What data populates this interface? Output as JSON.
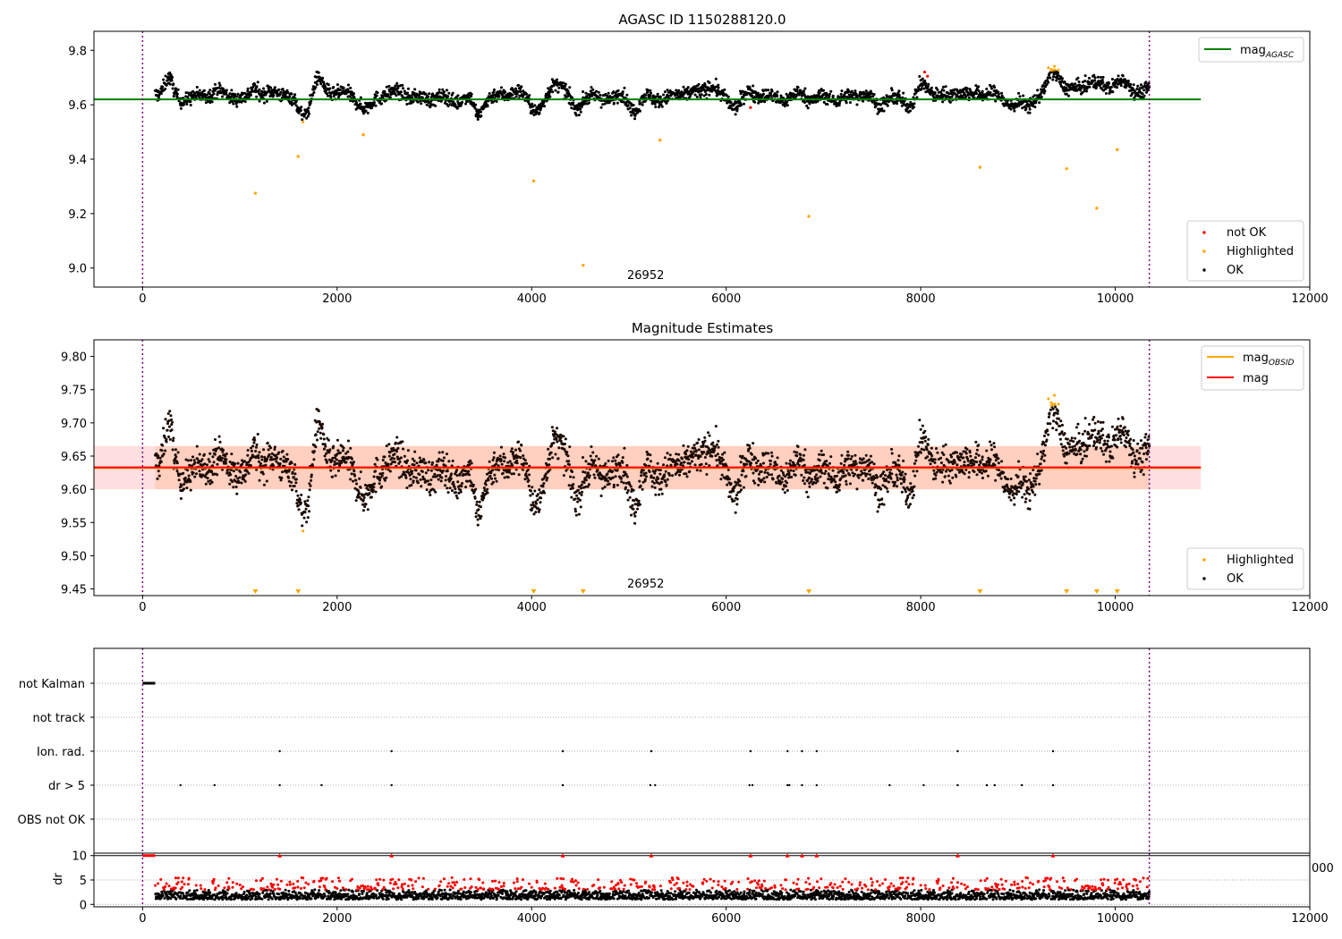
{
  "figure": {
    "background": "#ffffff",
    "obs_start_line": 0,
    "obs_end_line": 10350,
    "boundary_color": "#800080",
    "annotation": "26952"
  },
  "chart_data": [
    {
      "type": "scatter",
      "id": "agasc",
      "title": "AGASC ID 1150288120.0",
      "xlim": [
        -500,
        12000
      ],
      "ylim": [
        8.93,
        9.87
      ],
      "xticks": [
        "0",
        "2000",
        "4000",
        "6000",
        "8000",
        "10000",
        "12000"
      ],
      "yticks": [
        "9.0",
        "9.2",
        "9.4",
        "9.6",
        "9.8"
      ],
      "hline": {
        "name": "mag_AGASC",
        "value": 9.62,
        "x_range": [
          -500,
          10880
        ],
        "color": "#008000"
      },
      "series": [
        {
          "name": "not OK",
          "color": "#ff0000"
        },
        {
          "name": "Highlighted",
          "color": "#ffa500"
        },
        {
          "name": "OK",
          "color": "#000000"
        }
      ],
      "band": {
        "x_range": [
          130,
          10350
        ],
        "center": 9.635,
        "spread": 0.025
      },
      "outliers": [
        {
          "x": 1160,
          "y": 9.275
        },
        {
          "x": 1600,
          "y": 9.41
        },
        {
          "x": 2270,
          "y": 9.49
        },
        {
          "x": 4020,
          "y": 9.32
        },
        {
          "x": 4530,
          "y": 9.01
        },
        {
          "x": 5320,
          "y": 9.47
        },
        {
          "x": 6850,
          "y": 9.19
        },
        {
          "x": 8610,
          "y": 9.37
        },
        {
          "x": 9500,
          "y": 9.365
        },
        {
          "x": 9810,
          "y": 9.22
        },
        {
          "x": 10020,
          "y": 9.435
        }
      ],
      "annotation": {
        "text": "26952",
        "x": 5000,
        "y": 8.96
      }
    },
    {
      "type": "scatter",
      "id": "magnitude",
      "title": "Magnitude Estimates",
      "xlim": [
        -500,
        12000
      ],
      "ylim": [
        9.44,
        9.825
      ],
      "xticks": [
        "0",
        "2000",
        "4000",
        "6000",
        "8000",
        "10000",
        "12000"
      ],
      "yticks": [
        "9.45",
        "9.50",
        "9.55",
        "9.60",
        "9.65",
        "9.70",
        "9.75",
        "9.80"
      ],
      "hlines": [
        {
          "name": "mag_OBSID",
          "value": 9.632,
          "color": "#ffa500"
        },
        {
          "name": "mag",
          "value": 9.633,
          "color": "#ff0000"
        }
      ],
      "shaded_band": {
        "ymin": 9.6,
        "ymax": 9.665,
        "x_range": [
          -500,
          10880
        ],
        "color": "#ffc0c0"
      },
      "series": [
        {
          "name": "Highlighted",
          "color": "#ffa500"
        },
        {
          "name": "OK",
          "color": "#000000"
        }
      ],
      "offscale_markers_x": [
        1160,
        1600,
        4020,
        4530,
        6850,
        8610,
        9500,
        9810,
        10020
      ],
      "annotation": {
        "text": "26952",
        "x": 5000,
        "y": 9.447
      }
    },
    {
      "type": "scatter",
      "id": "flags",
      "xlim": [
        -500,
        12000
      ],
      "categories": [
        "not Kalman",
        "not track",
        "Ion. rad.",
        "dr > 5",
        "OBS not OK"
      ],
      "events": {
        "not Kalman": {
          "range": [
            0,
            130
          ]
        },
        "not track": {
          "x": []
        },
        "Ion. rad.": {
          "x": [
            1410,
            2560,
            4320,
            5230,
            6250,
            6630,
            6780,
            6930,
            8380,
            9360
          ]
        },
        "dr > 5": {
          "x": [
            390,
            740,
            1410,
            1840,
            2560,
            4320,
            5220,
            5270,
            6240,
            6270,
            6630,
            6650,
            6780,
            6930,
            7680,
            8030,
            8380,
            8680,
            8760,
            9040,
            9360
          ]
        },
        "OBS not OK": {
          "x": []
        }
      }
    },
    {
      "type": "scatter",
      "id": "dr",
      "ylabel": "dr",
      "xlim": [
        -500,
        12000
      ],
      "ylim": [
        -0.5,
        10.5
      ],
      "xticks": [
        "0",
        "2000",
        "4000",
        "6000",
        "8000",
        "10000",
        "12000"
      ],
      "yticks": [
        "0",
        "5",
        "10"
      ],
      "clipped_label": "000",
      "capped_x": [
        1410,
        2560,
        4320,
        5230,
        6250,
        6630,
        6780,
        6930,
        8380,
        9360
      ]
    }
  ]
}
